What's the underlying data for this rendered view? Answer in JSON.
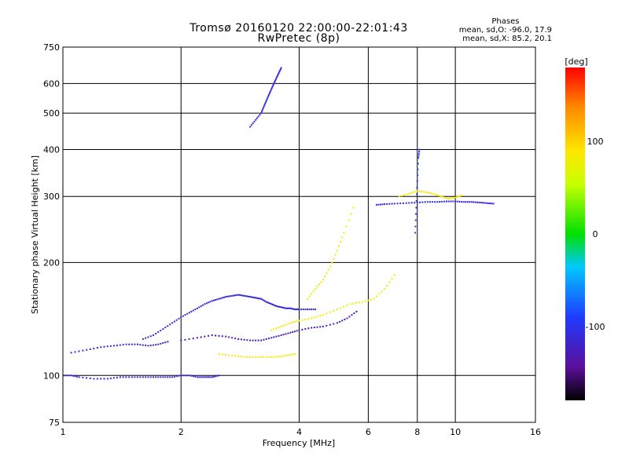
{
  "chart_data": {
    "type": "scatter",
    "title": "Tromsø 20160120 22:00:00-22:01:43",
    "subtitle": "RwPretec (8p)",
    "xlabel": "Frequency [MHz]",
    "ylabel": "Stationary phase Virtual Height [km]",
    "x_scale": "log",
    "y_scale": "log",
    "xlim": [
      1,
      16
    ],
    "ylim": [
      75,
      750
    ],
    "x_ticks": [
      "1",
      "2",
      "4",
      "6",
      "8",
      "10",
      "16"
    ],
    "y_ticks": [
      "75",
      "100",
      "200",
      "300",
      "400",
      "500",
      "600",
      "750"
    ],
    "grid": true,
    "stats": {
      "heading": "Phases",
      "line_o": "mean, sd,O: -96.0, 17.9",
      "line_x": "mean, sd,X: 85.2, 20.1"
    },
    "colorbar": {
      "unit": "[deg]",
      "ticks": [
        "100",
        "0",
        "-100"
      ],
      "range": [
        -180,
        180
      ]
    },
    "traces": [
      {
        "x": [
          1.0,
          1.05,
          1.1,
          1.2,
          1.3,
          1.4,
          1.5,
          1.6,
          1.7,
          1.8,
          1.9,
          2.0,
          2.1,
          2.2,
          2.3,
          2.4,
          2.5
        ],
        "y": [
          100,
          100,
          99,
          98,
          98,
          99,
          99,
          99,
          99,
          99,
          99,
          100,
          100,
          99,
          99,
          99,
          100
        ],
        "phase": -110
      },
      {
        "x": [
          1.05,
          1.15,
          1.25,
          1.35,
          1.45,
          1.55,
          1.65,
          1.75,
          1.85
        ],
        "y": [
          115,
          117,
          119,
          120,
          121,
          121,
          120,
          121,
          123
        ],
        "phase": -115
      },
      {
        "x": [
          1.6,
          1.7,
          1.8,
          1.9,
          2.0,
          2.1,
          2.2,
          2.3,
          2.4,
          2.5,
          2.6,
          2.7,
          2.8,
          2.9,
          3.0,
          3.1,
          3.2,
          3.3,
          3.4,
          3.5,
          3.6,
          3.7,
          3.8,
          3.9,
          4.0,
          4.2,
          4.4
        ],
        "y": [
          125,
          128,
          133,
          138,
          143,
          147,
          151,
          155,
          158,
          160,
          162,
          163,
          164,
          163,
          162,
          161,
          160,
          157,
          155,
          153,
          152,
          151,
          151,
          150,
          150,
          150,
          150
        ],
        "phase": -110
      },
      {
        "x": [
          2.0,
          2.2,
          2.4,
          2.6,
          2.8,
          3.0,
          3.2,
          3.4,
          3.6,
          3.8,
          4.0,
          4.3,
          4.6,
          5.0,
          5.3,
          5.6
        ],
        "y": [
          124,
          126,
          128,
          127,
          125,
          124,
          124,
          126,
          128,
          130,
          132,
          134,
          135,
          138,
          142,
          148
        ],
        "phase": -130
      },
      {
        "x": [
          3.4,
          3.6,
          3.8,
          4.0,
          4.3,
          4.6,
          5.0,
          5.4,
          5.8,
          6.2,
          6.6,
          7.0
        ],
        "y": [
          132,
          135,
          138,
          140,
          142,
          145,
          150,
          155,
          157,
          160,
          170,
          185
        ],
        "phase": 88
      },
      {
        "x": [
          4.2,
          4.4,
          4.6,
          4.8,
          5.0,
          5.2,
          5.5
        ],
        "y": [
          160,
          170,
          180,
          195,
          215,
          240,
          280
        ],
        "phase": 85
      },
      {
        "x": [
          2.5,
          2.7,
          2.9,
          3.1,
          3.3,
          3.5,
          3.7,
          3.9
        ],
        "y": [
          114,
          113,
          112,
          112,
          112,
          112,
          113,
          114
        ],
        "phase": 85
      },
      {
        "x": [
          3.0,
          3.1,
          3.2,
          3.25,
          3.3,
          3.35,
          3.4,
          3.45,
          3.5,
          3.55,
          3.6
        ],
        "y": [
          460,
          480,
          500,
          520,
          540,
          560,
          580,
          600,
          620,
          640,
          660
        ],
        "phase": -110
      },
      {
        "x": [
          6.3,
          6.6,
          7.0,
          7.5,
          8.0,
          8.5,
          9.0,
          9.5,
          10.0,
          10.5,
          11.0,
          11.5,
          12.0,
          12.5
        ],
        "y": [
          285,
          286,
          287,
          288,
          289,
          290,
          290,
          291,
          291,
          290,
          290,
          289,
          288,
          287
        ],
        "phase": -110
      },
      {
        "x": [
          7.2,
          7.6,
          8.0,
          8.4,
          8.8,
          9.2,
          9.6,
          10.0,
          10.4
        ],
        "y": [
          300,
          305,
          310,
          308,
          305,
          300,
          296,
          298,
          302
        ],
        "phase": 85
      },
      {
        "x": [
          7.9,
          7.95,
          8.0,
          8.05,
          8.1
        ],
        "y": [
          240,
          280,
          330,
          380,
          400
        ],
        "phase": -90
      }
    ]
  }
}
